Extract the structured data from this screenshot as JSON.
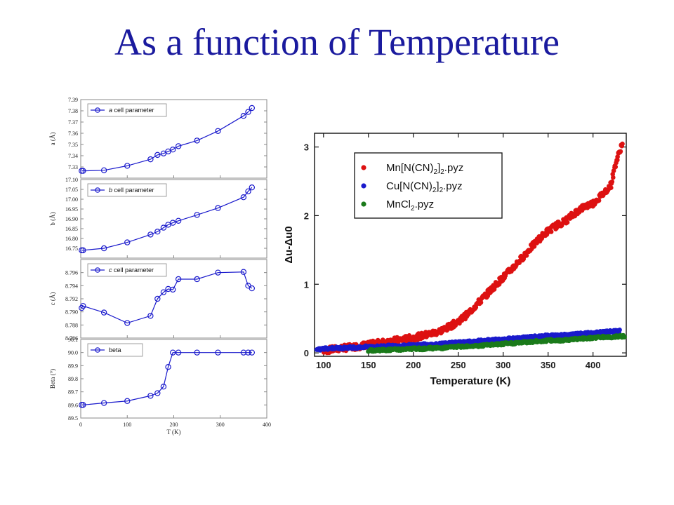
{
  "slide": {
    "title": "As a function of Temperature",
    "title_color": "#1a1a9e"
  },
  "chart_data": [
    {
      "type": "line",
      "panel": "a",
      "color": "#1a1acc",
      "legend": [
        {
          "prefix": "a",
          "text": "cell parameter",
          "italic_prefix": true
        }
      ],
      "ylabel": "a (Å)",
      "ylim": [
        7.32,
        7.39
      ],
      "yticks": [
        7.33,
        7.34,
        7.35,
        7.36,
        7.37,
        7.38,
        7.39
      ],
      "ytick_labels": [
        "7.33",
        "7.34",
        "7.35",
        "7.36",
        "7.37",
        "7.38",
        "7.39"
      ],
      "xlim": [
        0,
        400
      ],
      "x": [
        2,
        5,
        50,
        100,
        150,
        165,
        178,
        188,
        198,
        210,
        250,
        295,
        350,
        360,
        368
      ],
      "values": [
        7.3265,
        7.3265,
        7.327,
        7.331,
        7.3368,
        7.3407,
        7.342,
        7.3438,
        7.3455,
        7.3485,
        7.3535,
        7.362,
        7.3755,
        7.379,
        7.3825
      ],
      "grid": false
    },
    {
      "type": "line",
      "panel": "b",
      "color": "#1a1acc",
      "legend": [
        {
          "prefix": "b",
          "text": "cell parameter",
          "italic_prefix": true
        }
      ],
      "ylabel": "b (Å)",
      "ylim": [
        16.7,
        17.1
      ],
      "yticks": [
        16.75,
        16.8,
        16.85,
        16.9,
        16.95,
        17.0,
        17.05,
        17.1
      ],
      "ytick_labels": [
        "16.75",
        "16.80",
        "16.85",
        "16.90",
        "16.95",
        "17.00",
        "17.05",
        "17.10"
      ],
      "xlim": [
        0,
        400
      ],
      "x": [
        2,
        5,
        50,
        100,
        150,
        165,
        178,
        188,
        198,
        210,
        250,
        295,
        350,
        360,
        368
      ],
      "values": [
        16.74,
        16.74,
        16.75,
        16.78,
        16.82,
        16.835,
        16.855,
        16.87,
        16.88,
        16.89,
        16.92,
        16.955,
        17.01,
        17.04,
        17.06
      ],
      "grid": false
    },
    {
      "type": "line",
      "panel": "c",
      "color": "#1a1acc",
      "legend": [
        {
          "prefix": "c",
          "text": "cell parameter",
          "italic_prefix": true
        }
      ],
      "ylabel": "c (Å)",
      "ylim": [
        8.786,
        8.798
      ],
      "yticks": [
        8.786,
        8.788,
        8.79,
        8.792,
        8.794,
        8.796
      ],
      "ytick_labels": [
        "8.786",
        "8.788",
        "8.790",
        "8.792",
        "8.794",
        "8.796"
      ],
      "xlim": [
        0,
        400
      ],
      "x": [
        2,
        5,
        50,
        100,
        150,
        165,
        178,
        188,
        198,
        210,
        250,
        295,
        350,
        360,
        368
      ],
      "values": [
        8.7906,
        8.7909,
        8.7899,
        8.7883,
        8.7894,
        8.792,
        8.793,
        8.7935,
        8.7934,
        8.795,
        8.795,
        8.796,
        8.7961,
        8.794,
        8.7936
      ],
      "grid": false
    },
    {
      "type": "line",
      "panel": "beta",
      "color": "#1a1acc",
      "legend": [
        {
          "prefix": "",
          "text": "beta",
          "italic_prefix": false
        }
      ],
      "ylabel": "Beta (°)",
      "ylim": [
        89.5,
        90.1
      ],
      "yticks": [
        89.5,
        89.6,
        89.7,
        89.8,
        89.9,
        90.0,
        90.1
      ],
      "ytick_labels": [
        "89.5",
        "89.6",
        "89.7",
        "89.8",
        "89.9",
        "90.0",
        "90.1"
      ],
      "xlim": [
        0,
        400
      ],
      "xticks": [
        0,
        100,
        200,
        300,
        400
      ],
      "xtick_labels": [
        "0",
        "100",
        "200",
        "300",
        "400"
      ],
      "xlabel": "T (K)",
      "x": [
        2,
        5,
        50,
        100,
        150,
        165,
        178,
        188,
        198,
        210,
        250,
        295,
        350,
        360,
        368
      ],
      "values": [
        89.6,
        89.6,
        89.615,
        89.63,
        89.67,
        89.69,
        89.74,
        89.89,
        90.0,
        90.0,
        90.0,
        90.0,
        90.0,
        90.0,
        90.0
      ],
      "grid": false
    },
    {
      "type": "scatter",
      "xlabel": "Temperature (K)",
      "ylabel": "Δu-Δu0",
      "xlim": [
        90,
        437
      ],
      "ylim": [
        -0.05,
        3.2
      ],
      "xticks": [
        100,
        150,
        200,
        250,
        300,
        350,
        400
      ],
      "xtick_labels": [
        "100",
        "150",
        "200",
        "250",
        "300",
        "350",
        "400"
      ],
      "yticks": [
        0,
        1,
        2,
        3
      ],
      "ytick_labels": [
        "0",
        "1",
        "2",
        "3"
      ],
      "legend_position": "top-left",
      "series": [
        {
          "name": "Mn[N(CN)2]2.pyz",
          "legend_parts": [
            "Mn[N(CN)",
            "2",
            "]",
            "2",
            ".pyz"
          ],
          "color": "#dd1111",
          "x": [
            100,
            110,
            120,
            130,
            140,
            150,
            160,
            170,
            180,
            190,
            200,
            210,
            220,
            230,
            240,
            250,
            260,
            270,
            280,
            290,
            300,
            310,
            320,
            330,
            340,
            350,
            360,
            370,
            380,
            390,
            400,
            410,
            420,
            425,
            430,
            433
          ],
          "values": [
            0.03,
            0.05,
            0.07,
            0.08,
            0.1,
            0.12,
            0.14,
            0.16,
            0.18,
            0.2,
            0.22,
            0.25,
            0.28,
            0.32,
            0.38,
            0.46,
            0.56,
            0.7,
            0.83,
            0.97,
            1.1,
            1.23,
            1.37,
            1.52,
            1.66,
            1.78,
            1.86,
            1.93,
            2.04,
            2.13,
            2.18,
            2.3,
            2.45,
            2.75,
            2.95,
            3.08
          ]
        },
        {
          "name": "Cu[N(CN)2]2.pyz",
          "legend_parts": [
            "Cu[N(CN)",
            "2",
            "]",
            "2",
            ".pyz"
          ],
          "color": "#1a1acc",
          "x": [
            92,
            100,
            110,
            120,
            130,
            140,
            150,
            160,
            170,
            180,
            190,
            200,
            210,
            220,
            230,
            240,
            250,
            260,
            270,
            280,
            290,
            300,
            310,
            320,
            330,
            340,
            350,
            360,
            370,
            380,
            390,
            400,
            410,
            420,
            430
          ],
          "values": [
            0.04,
            0.06,
            0.07,
            0.07,
            0.08,
            0.08,
            0.09,
            0.09,
            0.1,
            0.1,
            0.11,
            0.11,
            0.12,
            0.12,
            0.13,
            0.14,
            0.15,
            0.16,
            0.17,
            0.18,
            0.19,
            0.2,
            0.21,
            0.22,
            0.23,
            0.24,
            0.25,
            0.25,
            0.26,
            0.27,
            0.28,
            0.29,
            0.3,
            0.31,
            0.32
          ]
        },
        {
          "name": "MnCl2.pyz",
          "legend_parts": [
            "MnCl",
            "2",
            ".pyz"
          ],
          "color": "#1a7a1a",
          "x": [
            150,
            160,
            170,
            180,
            190,
            200,
            210,
            220,
            230,
            240,
            250,
            260,
            270,
            280,
            290,
            300,
            310,
            320,
            330,
            340,
            350,
            360,
            370,
            380,
            390,
            400,
            410,
            420,
            430,
            435
          ],
          "values": [
            0.03,
            0.04,
            0.04,
            0.05,
            0.05,
            0.06,
            0.06,
            0.07,
            0.07,
            0.08,
            0.09,
            0.1,
            0.1,
            0.11,
            0.12,
            0.13,
            0.14,
            0.15,
            0.16,
            0.17,
            0.18,
            0.18,
            0.19,
            0.2,
            0.21,
            0.22,
            0.23,
            0.23,
            0.24,
            0.24
          ]
        }
      ],
      "grid": false
    }
  ]
}
